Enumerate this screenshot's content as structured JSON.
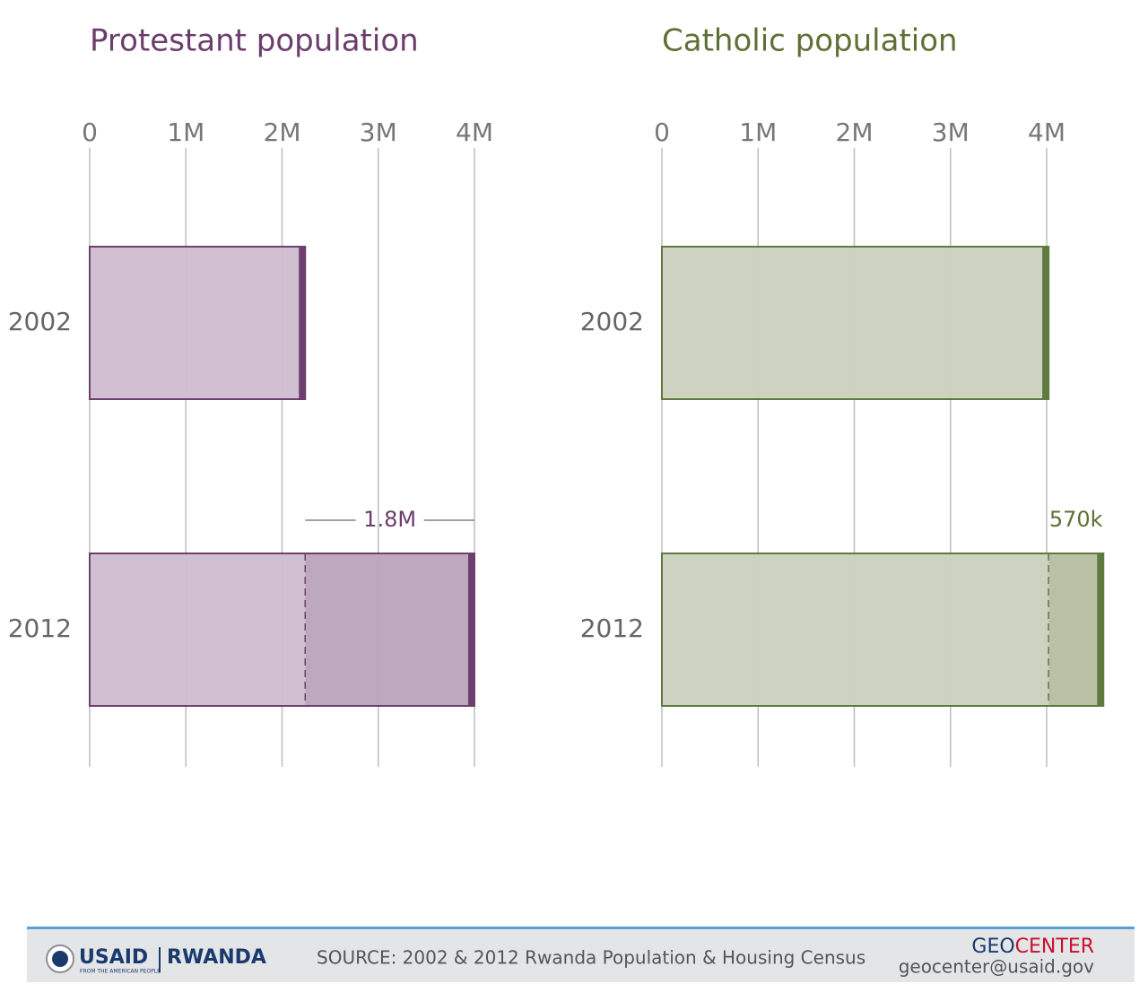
{
  "chart_data": [
    {
      "type": "bar",
      "title": "Protestant population",
      "title_color": "#6b3d6b",
      "edge_color": "#6e3f6e",
      "categories": [
        "2002",
        "2012"
      ],
      "series": [
        {
          "color": "#cfbdd0",
          "values": [
            2.24,
            2.24
          ]
        },
        {
          "color": "#b9a3b9",
          "values": [
            null,
            1.76
          ],
          "value_labels": [
            null,
            "1.8M"
          ]
        }
      ],
      "xlim": [
        0,
        4
      ],
      "xticks": [
        0,
        {
          "value": 1,
          "label": "1M"
        },
        {
          "value": 2,
          "label": "2M"
        },
        {
          "value": 3,
          "label": "3M"
        },
        {
          "value": 4,
          "label": "4M"
        }
      ],
      "grid": true
    },
    {
      "type": "bar",
      "title": "Catholic population",
      "title_color": "#5e7035",
      "edge_color": "#5e7a3f",
      "categories": [
        "2002",
        "2012"
      ],
      "series": [
        {
          "color": "#cbd1be",
          "values": [
            4.02,
            4.02
          ]
        },
        {
          "color": "#b5bfa1",
          "values": [
            null,
            0.57
          ],
          "value_labels": [
            null,
            "570k"
          ]
        }
      ],
      "xlim": [
        0,
        4
      ],
      "xticks": [
        0,
        {
          "value": 1,
          "label": "1M"
        },
        {
          "value": 2,
          "label": "2M"
        },
        {
          "value": 3,
          "label": "3M"
        },
        {
          "value": 4,
          "label": "4M"
        }
      ],
      "grid": true
    }
  ],
  "footer": {
    "usaid": "USAID",
    "country": "RWANDA",
    "tagline": "FROM THE AMERICAN PEOPLE",
    "source": "SOURCE: 2002 & 2012 Rwanda Population & Housing Census",
    "geo": "GEO",
    "center": "CENTER",
    "email": "geocenter@usaid.gov"
  }
}
